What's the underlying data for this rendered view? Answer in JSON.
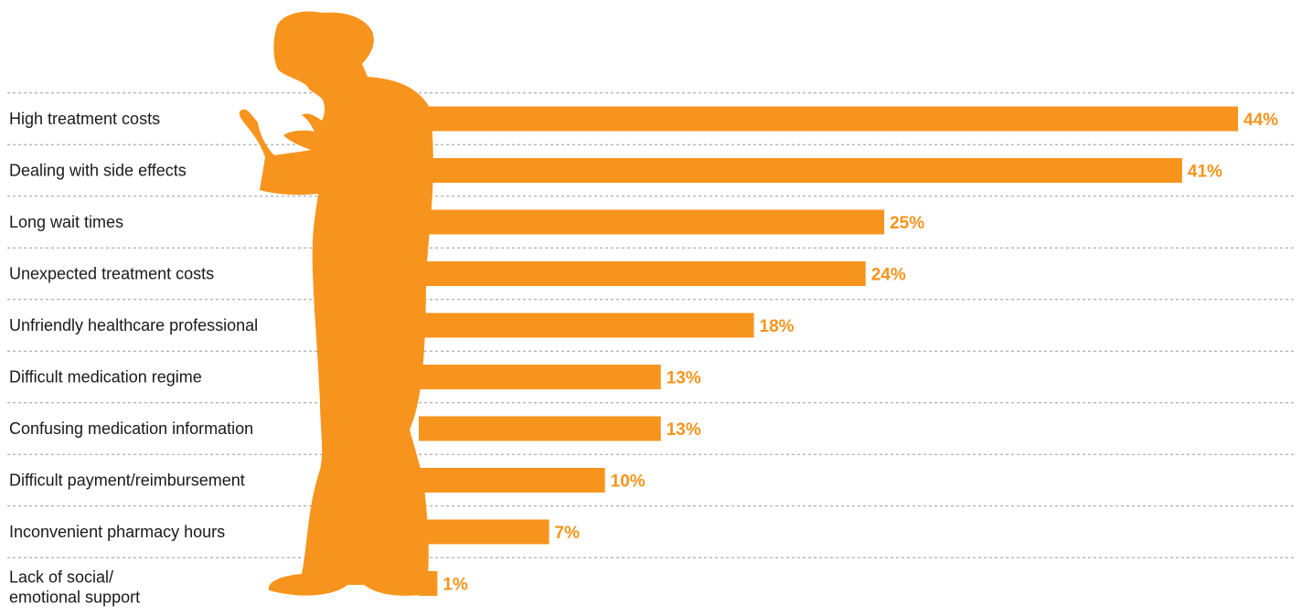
{
  "colors": {
    "accent": "#f7941d",
    "text": "#1a1a1a",
    "gridline": "#9a9a9a"
  },
  "illustration": "silhouette-of-man-looking-down",
  "chart_data": {
    "type": "bar",
    "orientation": "horizontal",
    "grid": true,
    "legend": false,
    "xlim": [
      0,
      44
    ],
    "categories": [
      [
        "High treatment costs"
      ],
      [
        "Dealing with side effects"
      ],
      [
        "Long wait times"
      ],
      [
        "Unexpected treatment costs"
      ],
      [
        "Unfriendly healthcare professional"
      ],
      [
        "Difficult medication regime"
      ],
      [
        "Confusing medication information"
      ],
      [
        "Difficult payment/reimbursement"
      ],
      [
        "Inconvenient pharmacy hours"
      ],
      [
        "Lack of social/",
        "emotional support"
      ]
    ],
    "values": [
      44,
      41,
      25,
      24,
      18,
      13,
      13,
      10,
      7,
      1
    ],
    "value_labels": [
      "44%",
      "41%",
      "25%",
      "24%",
      "18%",
      "13%",
      "13%",
      "10%",
      "7%",
      "1%"
    ]
  }
}
